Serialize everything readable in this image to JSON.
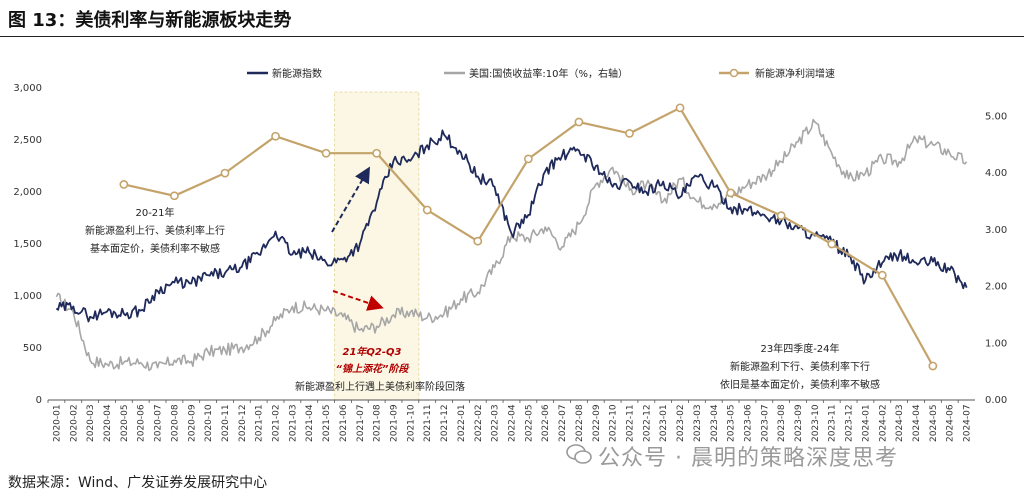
{
  "title": "图 13：美债利率与新能源板块走势",
  "source": "数据来源：Wind、广发证券发展研究中心",
  "watermark": "公众号 · 晨明的策略深度思考",
  "colors": {
    "index": "#1f2a5a",
    "yield": "#a6a6a6",
    "profit": "#c4a36a",
    "band": "#fbf7e4",
    "arrow_red": "#c00000",
    "arrow_blue": "#1f2a5a"
  },
  "chart_data": {
    "type": "line",
    "legend": [
      "新能源指数",
      "美国:国债收益率:10年（%，右轴）",
      "新能源净利润增速"
    ],
    "legend_placement": "top",
    "y_left": {
      "ticks": [
        "0",
        "500",
        "1,000",
        "1,500",
        "2,000",
        "2,500",
        "3,000"
      ],
      "range": [
        0,
        3000
      ]
    },
    "y_right": {
      "ticks": [
        "0.00",
        "1.00",
        "2.00",
        "3.00",
        "4.00",
        "5.00"
      ],
      "range": [
        0,
        5.5
      ]
    },
    "x_ticks": [
      "2020-01",
      "2020-02",
      "2020-03",
      "2020-04",
      "2020-05",
      "2020-06",
      "2020-07",
      "2020-08",
      "2020-09",
      "2020-10",
      "2020-11",
      "2020-12",
      "2021-01",
      "2021-02",
      "2021-03",
      "2021-04",
      "2021-05",
      "2021-06",
      "2021-07",
      "2021-08",
      "2021-09",
      "2021-10",
      "2021-11",
      "2021-12",
      "2022-01",
      "2022-02",
      "2022-03",
      "2022-04",
      "2022-05",
      "2022-06",
      "2022-07",
      "2022-08",
      "2022-09",
      "2022-10",
      "2022-11",
      "2022-12",
      "2023-01",
      "2023-02",
      "2023-03",
      "2023-04",
      "2023-05",
      "2023-06",
      "2023-07",
      "2023-08",
      "2023-09",
      "2023-10",
      "2023-11",
      "2023-12",
      "2024-01",
      "2024-02",
      "2024-03",
      "2024-04",
      "2024-05",
      "2024-06",
      "2024-07"
    ],
    "series": [
      {
        "name": "新能源指数",
        "axis": "left",
        "kind": "line",
        "points": [
          [
            "2020-01",
            880
          ],
          [
            "2020-02",
            900
          ],
          [
            "2020-03",
            800
          ],
          [
            "2020-04",
            850
          ],
          [
            "2020-05",
            830
          ],
          [
            "2020-06",
            860
          ],
          [
            "2020-07",
            1050
          ],
          [
            "2020-08",
            1130
          ],
          [
            "2020-09",
            1120
          ],
          [
            "2020-10",
            1200
          ],
          [
            "2020-11",
            1220
          ],
          [
            "2020-12",
            1280
          ],
          [
            "2021-01",
            1400
          ],
          [
            "2021-02",
            1620
          ],
          [
            "2021-03",
            1400
          ],
          [
            "2021-04",
            1420
          ],
          [
            "2021-05",
            1320
          ],
          [
            "2021-06",
            1350
          ],
          [
            "2021-07",
            1500
          ],
          [
            "2021-08",
            1900
          ],
          [
            "2021-09",
            2300
          ],
          [
            "2021-10",
            2300
          ],
          [
            "2021-11",
            2450
          ],
          [
            "2021-12",
            2550
          ],
          [
            "2022-01",
            2380
          ],
          [
            "2022-02",
            2150
          ],
          [
            "2022-03",
            2050
          ],
          [
            "2022-04",
            1600
          ],
          [
            "2022-05",
            1780
          ],
          [
            "2022-06",
            2200
          ],
          [
            "2022-07",
            2350
          ],
          [
            "2022-08",
            2400
          ],
          [
            "2022-09",
            2250
          ],
          [
            "2022-10",
            2050
          ],
          [
            "2022-11",
            2100
          ],
          [
            "2022-12",
            2000
          ],
          [
            "2023-01",
            2100
          ],
          [
            "2023-02",
            1950
          ],
          [
            "2023-03",
            2150
          ],
          [
            "2023-04",
            2050
          ],
          [
            "2023-05",
            1850
          ],
          [
            "2023-06",
            1820
          ],
          [
            "2023-07",
            1780
          ],
          [
            "2023-08",
            1720
          ],
          [
            "2023-09",
            1650
          ],
          [
            "2023-10",
            1580
          ],
          [
            "2023-11",
            1520
          ],
          [
            "2023-12",
            1380
          ],
          [
            "2024-01",
            1150
          ],
          [
            "2024-02",
            1320
          ],
          [
            "2024-03",
            1400
          ],
          [
            "2024-04",
            1320
          ],
          [
            "2024-05",
            1330
          ],
          [
            "2024-06",
            1250
          ],
          [
            "2024-07",
            1080
          ]
        ]
      },
      {
        "name": "美国:国债收益率:10年（%，右轴）",
        "axis": "right",
        "kind": "line",
        "points": [
          [
            "2020-01",
            1.82
          ],
          [
            "2020-02",
            1.55
          ],
          [
            "2020-03",
            0.7
          ],
          [
            "2020-04",
            0.63
          ],
          [
            "2020-05",
            0.66
          ],
          [
            "2020-06",
            0.66
          ],
          [
            "2020-07",
            0.57
          ],
          [
            "2020-08",
            0.7
          ],
          [
            "2020-09",
            0.68
          ],
          [
            "2020-10",
            0.85
          ],
          [
            "2020-11",
            0.88
          ],
          [
            "2020-12",
            0.93
          ],
          [
            "2021-01",
            1.1
          ],
          [
            "2021-02",
            1.4
          ],
          [
            "2021-03",
            1.65
          ],
          [
            "2021-04",
            1.63
          ],
          [
            "2021-05",
            1.58
          ],
          [
            "2021-06",
            1.47
          ],
          [
            "2021-07",
            1.23
          ],
          [
            "2021-08",
            1.3
          ],
          [
            "2021-09",
            1.5
          ],
          [
            "2021-10",
            1.55
          ],
          [
            "2021-11",
            1.45
          ],
          [
            "2021-12",
            1.52
          ],
          [
            "2022-01",
            1.78
          ],
          [
            "2022-02",
            1.9
          ],
          [
            "2022-03",
            2.34
          ],
          [
            "2022-04",
            2.9
          ],
          [
            "2022-05",
            2.85
          ],
          [
            "2022-06",
            3.05
          ],
          [
            "2022-07",
            2.7
          ],
          [
            "2022-08",
            3.1
          ],
          [
            "2022-09",
            3.8
          ],
          [
            "2022-10",
            4.1
          ],
          [
            "2022-11",
            3.7
          ],
          [
            "2022-12",
            3.8
          ],
          [
            "2023-01",
            3.5
          ],
          [
            "2023-02",
            3.9
          ],
          [
            "2023-03",
            3.5
          ],
          [
            "2023-04",
            3.45
          ],
          [
            "2023-05",
            3.6
          ],
          [
            "2023-06",
            3.8
          ],
          [
            "2023-07",
            3.95
          ],
          [
            "2023-08",
            4.2
          ],
          [
            "2023-09",
            4.55
          ],
          [
            "2023-10",
            4.9
          ],
          [
            "2023-11",
            4.35
          ],
          [
            "2023-12",
            3.9
          ],
          [
            "2024-01",
            4.0
          ],
          [
            "2024-02",
            4.25
          ],
          [
            "2024-03",
            4.2
          ],
          [
            "2024-04",
            4.6
          ],
          [
            "2024-05",
            4.5
          ],
          [
            "2024-06",
            4.35
          ],
          [
            "2024-07",
            4.2
          ]
        ]
      },
      {
        "name": "新能源净利润增速",
        "axis": "right",
        "kind": "line-markers",
        "points": [
          [
            "2020-05",
            3.8
          ],
          [
            "2020-08",
            3.6
          ],
          [
            "2020-11",
            4.0
          ],
          [
            "2021-02",
            4.65
          ],
          [
            "2021-05",
            4.35
          ],
          [
            "2021-08",
            4.35
          ],
          [
            "2021-11",
            3.35
          ],
          [
            "2022-02",
            2.8
          ],
          [
            "2022-05",
            4.25
          ],
          [
            "2022-08",
            4.9
          ],
          [
            "2022-11",
            4.7
          ],
          [
            "2023-02",
            5.15
          ],
          [
            "2023-05",
            3.65
          ],
          [
            "2023-08",
            3.25
          ],
          [
            "2023-11",
            2.75
          ],
          [
            "2024-02",
            2.2
          ],
          [
            "2024-05",
            0.6
          ]
        ]
      }
    ],
    "highlight_band": {
      "from": "2021-06",
      "to": "2021-10"
    },
    "annotations": [
      {
        "lines": [
          "20-21年",
          "新能源盈利上行、美债利率上行",
          "基本面定价，美债利率不敏感"
        ]
      },
      {
        "lines": [
          "21年Q2-Q3",
          "“锦上添花”阶段"
        ],
        "style": "red"
      },
      {
        "lines": [
          "新能源盈利上行遇上美债利率阶段回落"
        ]
      },
      {
        "lines": [
          "23年四季度-24年",
          "新能源盈利下行、美债利率下行",
          "依旧是基本面定价，美债利率不敏感"
        ]
      }
    ],
    "grid": false
  }
}
